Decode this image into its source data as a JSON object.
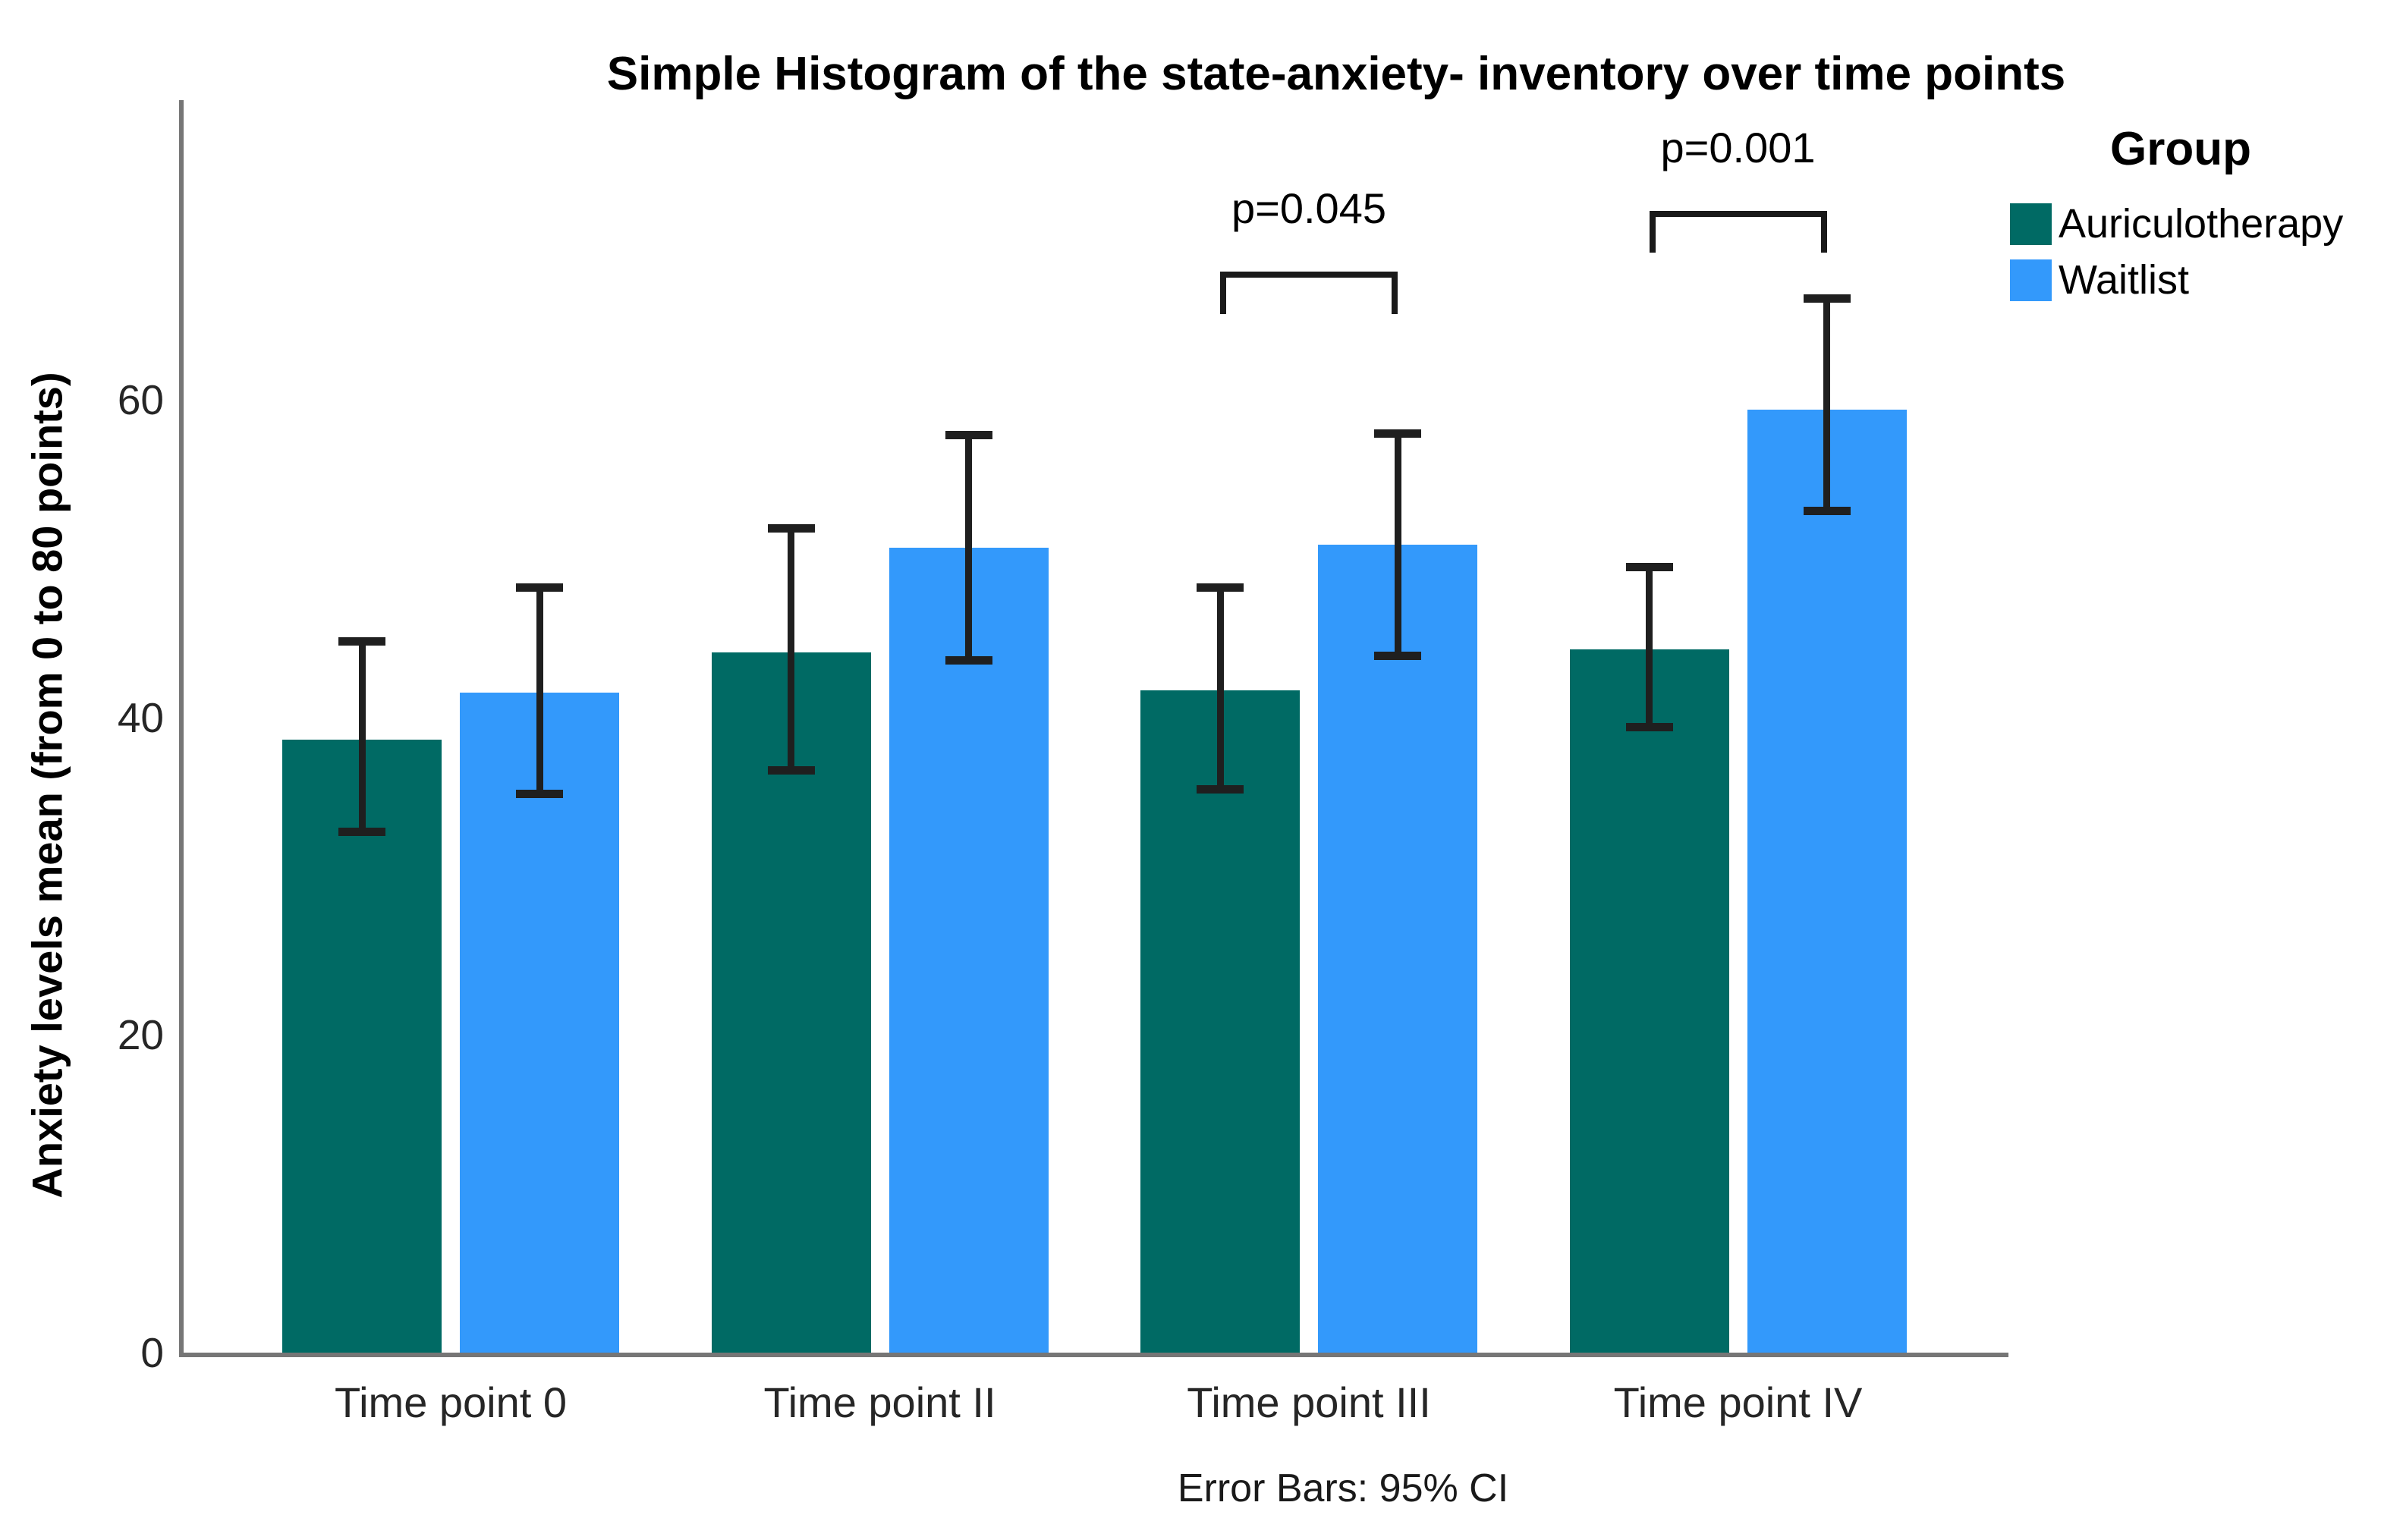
{
  "title": "Simple Histogram of the state-anxiety- inventory over time points",
  "caption": "Error Bars: 95% CI",
  "legend": {
    "title": "Group",
    "items": [
      "Auriculotherapy",
      "Waitlist"
    ]
  },
  "colors": {
    "auriculotherapy": "#006A64",
    "waitlist": "#3399FB",
    "axis": "#767676",
    "error_bar": "#1F1F1F",
    "text": "#000000"
  },
  "chart_data": {
    "type": "bar",
    "title": "Simple Histogram of the state-anxiety- inventory over time points",
    "xlabel": "",
    "ylabel": "Anxiety levels mean (from 0 to 80 points)",
    "categories": [
      "Time point 0",
      "Time point II",
      "Time point III",
      "Time point IV"
    ],
    "yticks": [
      0,
      20,
      40,
      60
    ],
    "ylim": [
      0,
      78.9
    ],
    "grid": false,
    "legend_position": "right",
    "legend_title": "Group",
    "error_bars": "95% CI",
    "series": [
      {
        "name": "Auriculotherapy",
        "color": "#006A64",
        "values": [
          38.6,
          44.1,
          41.7,
          44.3
        ],
        "ci_low": [
          32.8,
          36.7,
          35.5,
          39.4
        ],
        "ci_high": [
          44.8,
          51.9,
          48.2,
          49.5
        ]
      },
      {
        "name": "Waitlist",
        "color": "#3399FB",
        "values": [
          41.6,
          50.7,
          50.9,
          59.4
        ],
        "ci_low": [
          35.2,
          43.6,
          43.9,
          53.0
        ],
        "ci_high": [
          48.2,
          57.8,
          57.9,
          66.4
        ]
      }
    ],
    "significance": [
      {
        "label": "p=0.045",
        "category_index": 2,
        "bracket_value": 68.1,
        "leg_drop_value": 2.7
      },
      {
        "label": "p=0.001",
        "category_index": 3,
        "bracket_value": 71.9,
        "leg_drop_value": 2.6
      }
    ]
  }
}
